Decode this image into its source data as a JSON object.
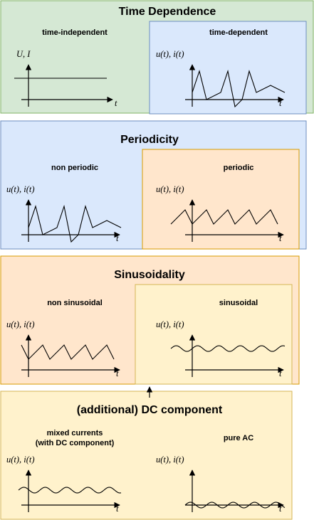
{
  "colors": {
    "green_fill": "#d5e8d4",
    "green_stroke": "#82b366",
    "blue_fill": "#dae8fc",
    "blue_stroke": "#6c8ebf",
    "orange_fill": "#ffe6cc",
    "orange_stroke": "#d79b00",
    "yellow_fill": "#fff2cc",
    "yellow_stroke": "#d6b656"
  },
  "time_dependence": {
    "title": "Time Dependence",
    "independent": {
      "label": "time-independent",
      "yaxis": "U, I",
      "xaxis": "t"
    },
    "dependent": {
      "label": "time-dependent",
      "yaxis": "u(t), i(t)",
      "xaxis": "t"
    }
  },
  "periodicity": {
    "title": "Periodicity",
    "non_periodic": {
      "label": "non periodic",
      "yaxis": "u(t), i(t)",
      "xaxis": "t"
    },
    "periodic": {
      "label": "periodic",
      "yaxis": "u(t), i(t)",
      "xaxis": "t"
    }
  },
  "sinusoidality": {
    "title": "Sinusoidality",
    "non_sinusoidal": {
      "label": "non sinusoidal",
      "yaxis": "u(t), i(t)",
      "xaxis": "t"
    },
    "sinusoidal": {
      "label": "sinusoidal",
      "yaxis": "u(t), i(t)",
      "xaxis": "t"
    }
  },
  "dc_component": {
    "title": "(additional) DC component",
    "mixed": {
      "label_line1": "mixed currents",
      "label_line2": "(with DC component)",
      "yaxis": "u(t), i(t)",
      "xaxis": "t"
    },
    "pure_ac": {
      "label": "pure AC",
      "yaxis": "u(t), i(t)",
      "xaxis": "t"
    }
  }
}
